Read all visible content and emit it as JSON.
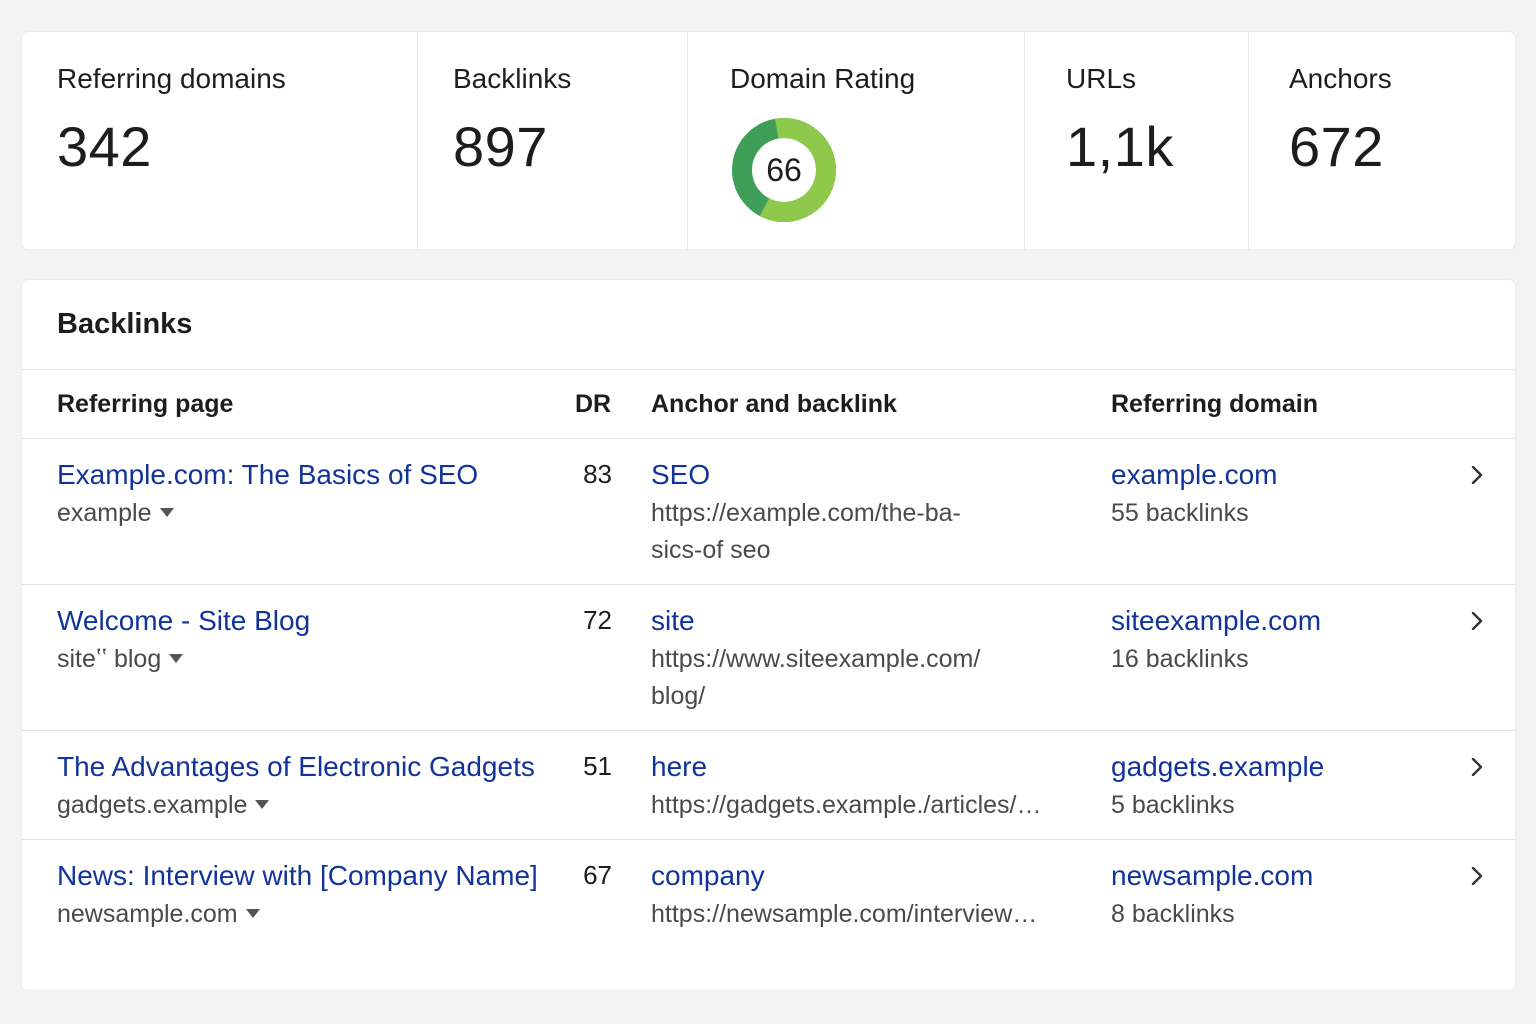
{
  "stats": {
    "referring_domains": {
      "label": "Referring domains",
      "value": "342"
    },
    "backlinks": {
      "label": "Backlinks",
      "value": "897"
    },
    "domain_rating": {
      "label": "Domain Rating",
      "value": "66",
      "fraction": 0.66
    },
    "urls": {
      "label": "URLs",
      "value": "1,1k"
    },
    "anchors": {
      "label": "Anchors",
      "value": "672"
    }
  },
  "colors": {
    "link": "#12349a",
    "donut_light": "#8fc94c",
    "donut_dark": "#3f9e57",
    "donut_track": "#e7f2dc"
  },
  "table": {
    "title": "Backlinks",
    "headers": {
      "referring_page": "Referring page",
      "dr": "DR",
      "anchor": "Anchor and backlink",
      "domain": "Referring domain"
    },
    "rows": [
      {
        "page_title": "Example.com: The Basics of SEO",
        "page_site": "example",
        "dr": "83",
        "anchor": "SEO",
        "url_line1": "https://example.com/the-ba-",
        "url_line2": "sics-of seo",
        "domain": "example.com",
        "domain_backlinks": "55 backlinks"
      },
      {
        "page_title": "Welcome - Site Blog",
        "page_site": "siteʽʽ blog",
        "dr": "72",
        "anchor": "site",
        "url_line1": "https://www.siteexample.com/",
        "url_line2": "blog/",
        "domain": "siteexample.com",
        "domain_backlinks": "16 backlinks"
      },
      {
        "page_title": "The Advantages of Electronic Gadgets",
        "page_site": "gadgets.example",
        "dr": "51",
        "anchor": "here",
        "url_line1": "https://gadgets.example./articles/…",
        "url_line2": "",
        "domain": "gadgets.example",
        "domain_backlinks": "5 backlinks"
      },
      {
        "page_title": "News: Interview with [Company Name]",
        "page_site": "newsample.com",
        "dr": "67",
        "anchor": "company",
        "url_line1": "https://newsample.com/interview…",
        "url_line2": "",
        "domain": "newsample.com",
        "domain_backlinks": "8 backlinks"
      }
    ]
  }
}
